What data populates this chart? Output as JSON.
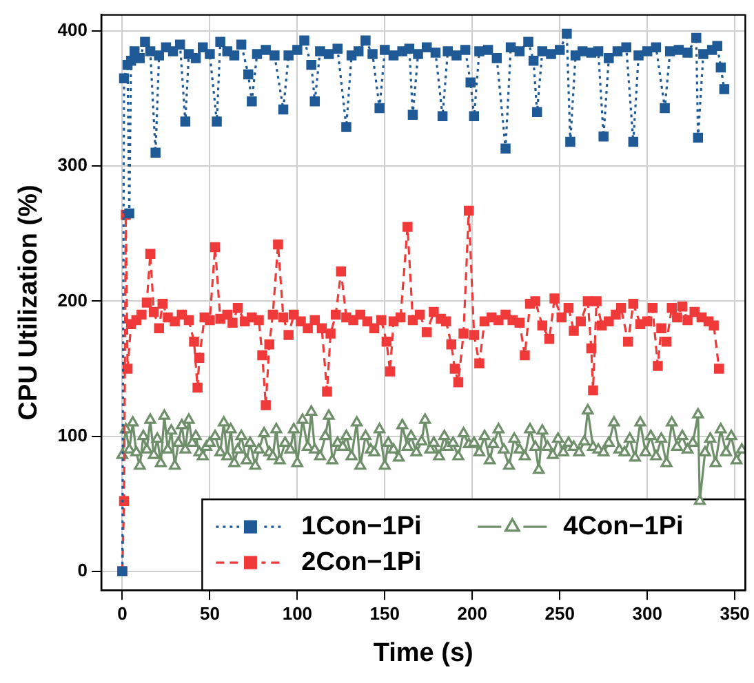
{
  "chart_data": {
    "type": "line",
    "xlabel": "Time (s)",
    "ylabel": "CPU Utilization (%)",
    "xlim": [
      -12,
      356
    ],
    "xticks": [
      0,
      50,
      100,
      150,
      200,
      250,
      300,
      350
    ],
    "ylim": [
      -14,
      412
    ],
    "yticks": [
      0,
      100,
      200,
      300,
      400
    ],
    "grid": true,
    "legend": "bottom right",
    "series": [
      {
        "name": "1Con−1Pi",
        "color": "#1f5a96",
        "marker": "square",
        "line_style": "dotted",
        "x": [
          0,
          1,
          3,
          4,
          5,
          7,
          10,
          13,
          16,
          19,
          21,
          25,
          29,
          33,
          36,
          38,
          42,
          46,
          50,
          54,
          56,
          60,
          64,
          68,
          72,
          74,
          77,
          82,
          87,
          92,
          95,
          100,
          104,
          108,
          110,
          113,
          118,
          123,
          128,
          131,
          135,
          139,
          143,
          147,
          150,
          155,
          160,
          164,
          166,
          169,
          174,
          179,
          183,
          186,
          191,
          196,
          199,
          201,
          204,
          209,
          214,
          219,
          222,
          227,
          232,
          235,
          237,
          240,
          245,
          250,
          254,
          256,
          259,
          263,
          268,
          272,
          275,
          278,
          283,
          288,
          292,
          295,
          300,
          305,
          310,
          313,
          318,
          323,
          328,
          329,
          332,
          337,
          340,
          342,
          344
        ],
        "values": [
          0,
          365,
          375,
          265,
          378,
          385,
          380,
          392,
          385,
          310,
          382,
          388,
          385,
          390,
          333,
          383,
          380,
          388,
          383,
          333,
          392,
          385,
          382,
          390,
          368,
          348,
          383,
          386,
          382,
          342,
          382,
          386,
          393,
          375,
          348,
          385,
          383,
          387,
          329,
          382,
          385,
          393,
          383,
          343,
          386,
          382,
          385,
          387,
          338,
          383,
          388,
          384,
          337,
          385,
          382,
          386,
          362,
          337,
          385,
          386,
          380,
          313,
          388,
          385,
          392,
          378,
          340,
          385,
          383,
          386,
          398,
          318,
          382,
          385,
          384,
          385,
          322,
          380,
          385,
          388,
          318,
          382,
          385,
          388,
          343,
          385,
          386,
          384,
          395,
          321,
          383,
          386,
          389,
          373,
          357
        ]
      },
      {
        "name": "2Con−1Pi",
        "color": "#f03a3a",
        "marker": "square",
        "line_style": "dashed",
        "x": [
          0,
          1,
          2,
          3,
          5,
          8,
          11,
          14,
          16,
          18,
          21,
          23,
          26,
          30,
          34,
          38,
          41,
          43,
          44,
          47,
          50,
          53,
          56,
          60,
          63,
          66,
          70,
          74,
          78,
          80,
          82,
          84,
          86,
          89,
          92,
          95,
          98,
          102,
          106,
          110,
          114,
          117,
          119,
          122,
          125,
          128,
          132,
          136,
          140,
          144,
          148,
          151,
          153,
          155,
          159,
          163,
          166,
          170,
          174,
          178,
          182,
          185,
          188,
          190,
          192,
          195,
          198,
          201,
          204,
          207,
          211,
          215,
          219,
          223,
          227,
          230,
          233,
          236,
          240,
          244,
          247,
          251,
          255,
          258,
          262,
          266,
          268,
          269,
          271,
          274,
          278,
          282,
          285,
          289,
          292,
          296,
          300,
          303,
          306,
          308,
          311,
          314,
          317,
          320,
          323,
          327,
          331,
          335,
          338,
          341
        ],
        "values": [
          0,
          52,
          264,
          150,
          183,
          186,
          190,
          199,
          235,
          192,
          180,
          198,
          188,
          185,
          190,
          186,
          170,
          136,
          158,
          188,
          186,
          240,
          187,
          190,
          184,
          195,
          185,
          188,
          186,
          160,
          123,
          168,
          190,
          242,
          188,
          175,
          190,
          185,
          180,
          186,
          180,
          133,
          176,
          190,
          222,
          188,
          186,
          190,
          185,
          180,
          186,
          170,
          148,
          185,
          188,
          255,
          186,
          190,
          177,
          192,
          187,
          185,
          168,
          150,
          140,
          176,
          267,
          175,
          154,
          185,
          188,
          186,
          190,
          186,
          184,
          160,
          198,
          200,
          182,
          172,
          202,
          188,
          195,
          178,
          185,
          200,
          165,
          134,
          200,
          182,
          185,
          190,
          195,
          170,
          198,
          183,
          185,
          195,
          152,
          180,
          170,
          195,
          188,
          196,
          186,
          192,
          188,
          185,
          182,
          150
        ]
      },
      {
        "name": "4Con−1Pi",
        "color": "#6e8f6a",
        "marker": "triangle",
        "line_style": "solid",
        "x": [
          0,
          2,
          4,
          6,
          8,
          10,
          12,
          14,
          16,
          18,
          20,
          22,
          24,
          26,
          28,
          30,
          32,
          34,
          36,
          38,
          40,
          42,
          44,
          46,
          48,
          50,
          53,
          56,
          58,
          60,
          62,
          64,
          66,
          68,
          71,
          73,
          76,
          78,
          81,
          84,
          86,
          88,
          90,
          93,
          96,
          98,
          100,
          103,
          106,
          108,
          110,
          113,
          116,
          118,
          120,
          123,
          126,
          128,
          131,
          134,
          136,
          139,
          142,
          144,
          147,
          150,
          152,
          155,
          158,
          160,
          163,
          165,
          168,
          171,
          173,
          176,
          178,
          181,
          184,
          186,
          189,
          192,
          195,
          198,
          201,
          204,
          207,
          210,
          212,
          215,
          218,
          221,
          224,
          227,
          230,
          233,
          236,
          238,
          240,
          243,
          246,
          249,
          252,
          255,
          258,
          261,
          264,
          266,
          269,
          272,
          275,
          278,
          281,
          284,
          287,
          290,
          293,
          296,
          299,
          302,
          305,
          308,
          311,
          314,
          317,
          320,
          323,
          326,
          329,
          330,
          333,
          336,
          339,
          342,
          345,
          348,
          351,
          354
        ],
        "values": [
          86,
          105,
          90,
          110,
          88,
          78,
          100,
          90,
          112,
          86,
          98,
          80,
          115,
          90,
          104,
          78,
          95,
          108,
          90,
          112,
          95,
          100,
          88,
          85,
          92,
          95,
          100,
          88,
          110,
          85,
          105,
          80,
          90,
          100,
          82,
          95,
          78,
          90,
          102,
          88,
          85,
          105,
          82,
          95,
          90,
          105,
          80,
          112,
          92,
          118,
          90,
          85,
          100,
          115,
          82,
          95,
          92,
          100,
          85,
          110,
          78,
          100,
          90,
          88,
          105,
          78,
          95,
          90,
          84,
          108,
          92,
          100,
          88,
          96,
          112,
          90,
          95,
          85,
          100,
          92,
          95,
          85,
          102,
          94,
          95,
          88,
          100,
          82,
          94,
          105,
          90,
          78,
          98,
          90,
          85,
          105,
          92,
          75,
          104,
          92,
          86,
          98,
          88,
          95,
          92,
          88,
          96,
          119,
          92,
          90,
          88,
          95,
          110,
          90,
          88,
          98,
          84,
          110,
          88,
          100,
          85,
          98,
          80,
          110,
          92,
          100,
          90,
          95,
          116,
          52,
          88,
          98,
          80,
          105,
          88,
          100,
          82,
          90
        ]
      }
    ]
  }
}
